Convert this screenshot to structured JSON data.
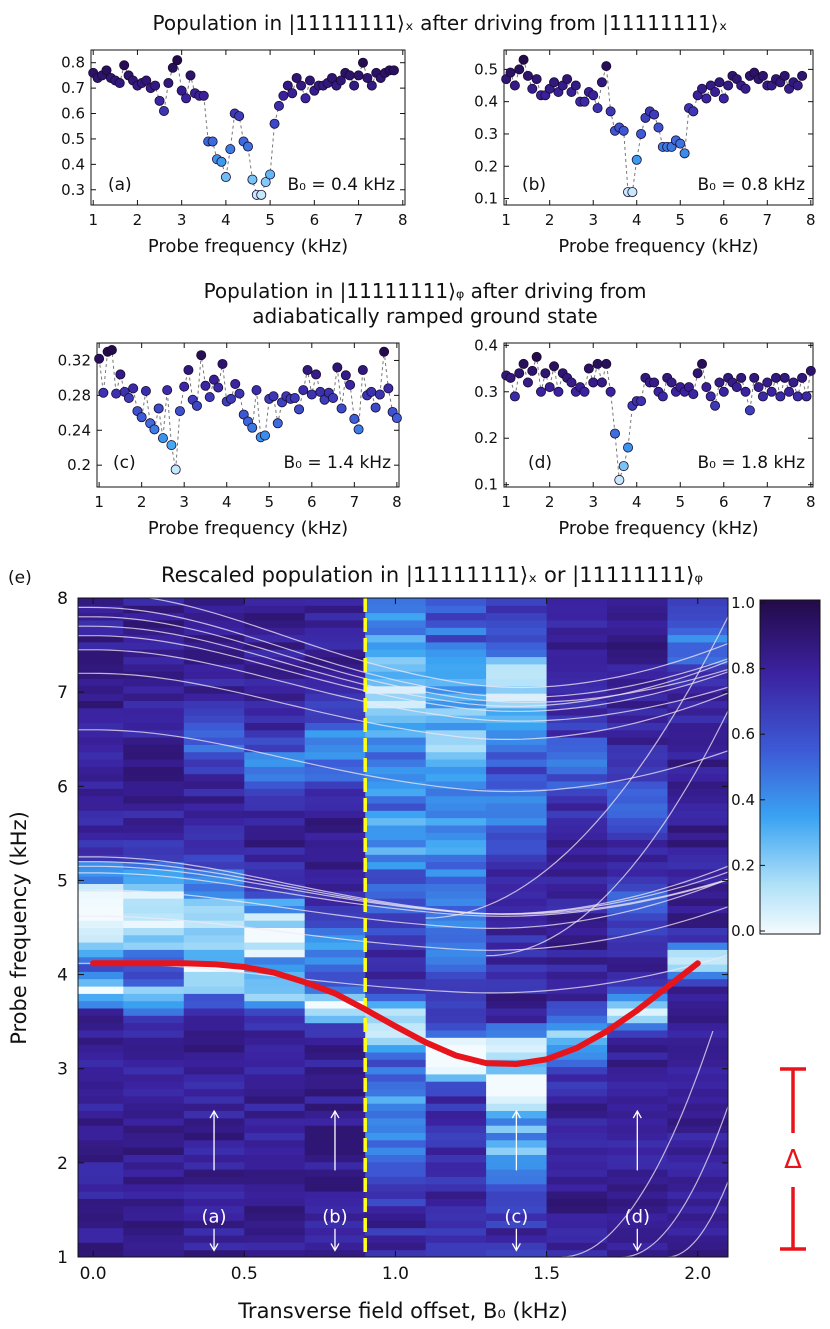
{
  "titles": {
    "top": "Population in |11111111⟩ₓ after driving from |11111111⟩ₓ",
    "mid_line1": "Population in |11111111⟩ᵩ after driving from",
    "mid_line2": "adiabatically ramped ground state",
    "bottom": "Rescaled population in |11111111⟩ₓ or |11111111⟩ᵩ",
    "bottom_panel_tag": "(e)"
  },
  "colors": {
    "point_dark": "#2a0a4a",
    "point_mid": "#3f2fa8",
    "point_blue": "#3f8fe8",
    "point_light": "#bfe6fb",
    "curve_red": "#e8141c",
    "line_yellow": "#ffff1a",
    "guide_white": "#f2e8f4"
  },
  "chart_data": [
    {
      "type": "scatter",
      "panel": "(a)",
      "annotation": "B₀ = 0.4 kHz",
      "xlabel": "Probe frequency (kHz)",
      "ylabel": "",
      "xlim": [
        0.95,
        8.05
      ],
      "ylim": [
        0.24,
        0.85
      ],
      "xticks": [
        "1",
        "2",
        "3",
        "4",
        "5",
        "6",
        "7",
        "8"
      ],
      "yticks": [
        "0.3",
        "0.4",
        "0.5",
        "0.6",
        "0.7",
        "0.8"
      ],
      "ytick_values": [
        0.3,
        0.4,
        0.5,
        0.6,
        0.7,
        0.8
      ],
      "x": [
        1.0,
        1.1,
        1.2,
        1.3,
        1.4,
        1.5,
        1.6,
        1.7,
        1.8,
        1.9,
        2.0,
        2.1,
        2.2,
        2.3,
        2.4,
        2.5,
        2.6,
        2.7,
        2.8,
        2.9,
        3.0,
        3.1,
        3.2,
        3.3,
        3.4,
        3.5,
        3.6,
        3.7,
        3.8,
        3.9,
        4.0,
        4.1,
        4.2,
        4.3,
        4.4,
        4.5,
        4.6,
        4.7,
        4.8,
        4.9,
        5.0,
        5.1,
        5.2,
        5.3,
        5.4,
        5.5,
        5.6,
        5.7,
        5.8,
        5.9,
        6.0,
        6.1,
        6.2,
        6.3,
        6.4,
        6.5,
        6.6,
        6.7,
        6.8,
        6.9,
        7.0,
        7.1,
        7.2,
        7.3,
        7.4,
        7.5,
        7.6,
        7.7,
        7.8
      ],
      "y": [
        0.76,
        0.74,
        0.75,
        0.77,
        0.74,
        0.73,
        0.72,
        0.79,
        0.75,
        0.73,
        0.71,
        0.72,
        0.73,
        0.7,
        0.71,
        0.65,
        0.61,
        0.72,
        0.78,
        0.81,
        0.69,
        0.66,
        0.75,
        0.68,
        0.67,
        0.67,
        0.49,
        0.49,
        0.42,
        0.41,
        0.35,
        0.46,
        0.6,
        0.59,
        0.49,
        0.47,
        0.34,
        0.28,
        0.28,
        0.33,
        0.36,
        0.56,
        0.63,
        0.67,
        0.71,
        0.68,
        0.74,
        0.71,
        0.66,
        0.73,
        0.69,
        0.71,
        0.71,
        0.72,
        0.74,
        0.71,
        0.73,
        0.76,
        0.75,
        0.71,
        0.75,
        0.8,
        0.74,
        0.71,
        0.76,
        0.74,
        0.76,
        0.77,
        0.77
      ]
    },
    {
      "type": "scatter",
      "panel": "(b)",
      "annotation": "B₀ = 0.8 kHz",
      "xlabel": "Probe frequency (kHz)",
      "ylabel": "",
      "xlim": [
        0.95,
        8.05
      ],
      "ylim": [
        0.08,
        0.56
      ],
      "xticks": [
        "1",
        "2",
        "3",
        "4",
        "5",
        "6",
        "7",
        "8"
      ],
      "yticks": [
        "0.1",
        "0.2",
        "0.3",
        "0.4",
        "0.5"
      ],
      "ytick_values": [
        0.1,
        0.2,
        0.3,
        0.4,
        0.5
      ],
      "x": [
        1.0,
        1.1,
        1.2,
        1.3,
        1.4,
        1.5,
        1.6,
        1.7,
        1.8,
        1.9,
        2.0,
        2.1,
        2.2,
        2.3,
        2.4,
        2.5,
        2.6,
        2.7,
        2.8,
        2.9,
        3.0,
        3.1,
        3.2,
        3.3,
        3.4,
        3.5,
        3.6,
        3.7,
        3.8,
        3.9,
        4.0,
        4.1,
        4.2,
        4.3,
        4.4,
        4.5,
        4.6,
        4.7,
        4.8,
        4.9,
        5.0,
        5.1,
        5.2,
        5.3,
        5.4,
        5.5,
        5.6,
        5.7,
        5.8,
        5.9,
        6.0,
        6.1,
        6.2,
        6.3,
        6.4,
        6.5,
        6.6,
        6.7,
        6.8,
        6.9,
        7.0,
        7.1,
        7.2,
        7.3,
        7.4,
        7.5,
        7.6,
        7.7,
        7.8
      ],
      "y": [
        0.47,
        0.49,
        0.45,
        0.5,
        0.53,
        0.48,
        0.44,
        0.47,
        0.42,
        0.42,
        0.44,
        0.46,
        0.43,
        0.45,
        0.47,
        0.43,
        0.45,
        0.4,
        0.4,
        0.43,
        0.42,
        0.38,
        0.46,
        0.51,
        0.37,
        0.31,
        0.32,
        0.31,
        0.12,
        0.12,
        0.22,
        0.3,
        0.35,
        0.37,
        0.36,
        0.32,
        0.26,
        0.26,
        0.26,
        0.28,
        0.27,
        0.24,
        0.38,
        0.37,
        0.42,
        0.44,
        0.41,
        0.45,
        0.43,
        0.46,
        0.41,
        0.45,
        0.48,
        0.47,
        0.45,
        0.44,
        0.48,
        0.49,
        0.47,
        0.48,
        0.45,
        0.45,
        0.47,
        0.46,
        0.48,
        0.44,
        0.46,
        0.45,
        0.48
      ]
    },
    {
      "type": "scatter",
      "panel": "(c)",
      "annotation": "B₀ = 1.4 kHz",
      "xlabel": "Probe frequency (kHz)",
      "ylabel": "",
      "xlim": [
        0.95,
        8.05
      ],
      "ylim": [
        0.175,
        0.34
      ],
      "xticks": [
        "1",
        "2",
        "3",
        "4",
        "5",
        "6",
        "7",
        "8"
      ],
      "yticks": [
        "0.2",
        "0.24",
        "0.28",
        "0.32"
      ],
      "ytick_values": [
        0.2,
        0.24,
        0.28,
        0.32
      ],
      "x": [
        1.0,
        1.1,
        1.2,
        1.3,
        1.4,
        1.5,
        1.6,
        1.7,
        1.8,
        1.9,
        2.0,
        2.1,
        2.2,
        2.3,
        2.4,
        2.5,
        2.6,
        2.7,
        2.8,
        2.9,
        3.0,
        3.1,
        3.2,
        3.3,
        3.4,
        3.5,
        3.6,
        3.7,
        3.8,
        3.9,
        4.0,
        4.1,
        4.2,
        4.3,
        4.4,
        4.5,
        4.6,
        4.7,
        4.8,
        4.9,
        5.0,
        5.1,
        5.2,
        5.3,
        5.4,
        5.5,
        5.6,
        5.7,
        5.8,
        5.9,
        6.0,
        6.1,
        6.2,
        6.3,
        6.4,
        6.5,
        6.6,
        6.7,
        6.8,
        6.9,
        7.0,
        7.1,
        7.2,
        7.3,
        7.4,
        7.5,
        7.6,
        7.7,
        7.8,
        7.9,
        8.0
      ],
      "y": [
        0.322,
        0.283,
        0.33,
        0.332,
        0.282,
        0.304,
        0.284,
        0.277,
        0.288,
        0.262,
        0.255,
        0.285,
        0.248,
        0.241,
        0.265,
        0.231,
        0.286,
        0.223,
        0.195,
        0.262,
        0.29,
        0.309,
        0.275,
        0.268,
        0.326,
        0.291,
        0.278,
        0.298,
        0.289,
        0.316,
        0.273,
        0.276,
        0.293,
        0.282,
        0.258,
        0.25,
        0.243,
        0.286,
        0.232,
        0.234,
        0.276,
        0.279,
        0.248,
        0.272,
        0.279,
        0.276,
        0.277,
        0.264,
        0.286,
        0.309,
        0.281,
        0.304,
        0.284,
        0.275,
        0.283,
        0.277,
        0.312,
        0.265,
        0.303,
        0.292,
        0.253,
        0.241,
        0.309,
        0.28,
        0.284,
        0.266,
        0.281,
        0.33,
        0.288,
        0.261,
        0.254
      ]
    },
    {
      "type": "scatter",
      "panel": "(d)",
      "annotation": "B₀ = 1.8 kHz",
      "xlabel": "Probe frequency (kHz)",
      "ylabel": "",
      "xlim": [
        0.95,
        8.05
      ],
      "ylim": [
        0.095,
        0.405
      ],
      "xticks": [
        "1",
        "2",
        "3",
        "4",
        "5",
        "6",
        "7",
        "8"
      ],
      "yticks": [
        "0.1",
        "0.2",
        "0.3",
        "0.4"
      ],
      "ytick_values": [
        0.1,
        0.2,
        0.3,
        0.4
      ],
      "x": [
        1.0,
        1.1,
        1.2,
        1.3,
        1.4,
        1.5,
        1.6,
        1.7,
        1.8,
        1.9,
        2.0,
        2.1,
        2.2,
        2.3,
        2.4,
        2.5,
        2.6,
        2.7,
        2.8,
        2.9,
        3.0,
        3.1,
        3.2,
        3.3,
        3.4,
        3.5,
        3.6,
        3.7,
        3.8,
        3.9,
        4.0,
        4.1,
        4.2,
        4.3,
        4.4,
        4.5,
        4.6,
        4.7,
        4.8,
        4.9,
        5.0,
        5.1,
        5.2,
        5.3,
        5.4,
        5.5,
        5.6,
        5.7,
        5.8,
        5.9,
        6.0,
        6.1,
        6.2,
        6.3,
        6.4,
        6.5,
        6.6,
        6.7,
        6.8,
        6.9,
        7.0,
        7.1,
        7.2,
        7.3,
        7.4,
        7.5,
        7.6,
        7.7,
        7.8,
        7.9,
        8.0
      ],
      "y": [
        0.335,
        0.33,
        0.29,
        0.34,
        0.36,
        0.32,
        0.345,
        0.375,
        0.3,
        0.34,
        0.31,
        0.355,
        0.3,
        0.34,
        0.33,
        0.32,
        0.3,
        0.31,
        0.3,
        0.35,
        0.32,
        0.36,
        0.32,
        0.36,
        0.3,
        0.21,
        0.11,
        0.14,
        0.18,
        0.27,
        0.28,
        0.28,
        0.33,
        0.32,
        0.32,
        0.3,
        0.29,
        0.33,
        0.32,
        0.3,
        0.31,
        0.3,
        0.31,
        0.295,
        0.34,
        0.36,
        0.31,
        0.29,
        0.27,
        0.32,
        0.3,
        0.33,
        0.32,
        0.31,
        0.33,
        0.3,
        0.26,
        0.33,
        0.31,
        0.29,
        0.32,
        0.3,
        0.33,
        0.29,
        0.33,
        0.3,
        0.32,
        0.29,
        0.33,
        0.29,
        0.345
      ]
    },
    {
      "type": "heatmap",
      "panel": "(e)",
      "xlabel": "Transverse field offset, B₀ (kHz)",
      "ylabel": "Probe frequency (kHz)",
      "xlim": [
        -0.05,
        2.1
      ],
      "ylim": [
        1.0,
        8.0
      ],
      "xticks": [
        "0.0",
        "0.5",
        "1.0",
        "1.5",
        "2.0"
      ],
      "xtick_values": [
        0.0,
        0.5,
        1.0,
        1.5,
        2.0
      ],
      "yticks": [
        "1",
        "2",
        "3",
        "4",
        "5",
        "6",
        "7",
        "8"
      ],
      "ytick_values": [
        1,
        2,
        3,
        4,
        5,
        6,
        7,
        8
      ],
      "columns_B0": [
        0.0,
        0.2,
        0.4,
        0.6,
        0.8,
        1.0,
        1.2,
        1.4,
        1.6,
        1.8,
        2.0
      ],
      "column_features": [
        {
          "dips": [
            [
              4.65,
              0.35,
              0.9
            ],
            [
              3.82,
              0.1,
              0.8
            ]
          ]
        },
        {
          "dips": [
            [
              4.62,
              0.35,
              0.8
            ],
            [
              3.75,
              0.12,
              0.6
            ]
          ]
        },
        {
          "dips": [
            [
              4.55,
              0.4,
              0.6
            ],
            [
              3.95,
              0.15,
              0.55
            ],
            [
              6.5,
              0.2,
              0.3
            ]
          ]
        },
        {
          "dips": [
            [
              4.45,
              0.3,
              0.75
            ],
            [
              3.8,
              0.15,
              0.5
            ],
            [
              6.2,
              0.2,
              0.35
            ]
          ]
        },
        {
          "dips": [
            [
              3.65,
              0.12,
              0.9
            ],
            [
              4.3,
              0.2,
              0.45
            ],
            [
              6.4,
              0.3,
              0.35
            ]
          ]
        },
        {
          "dips": [
            [
              3.5,
              0.2,
              0.55
            ],
            [
              7.1,
              0.6,
              0.55
            ],
            [
              5.5,
              0.5,
              0.35
            ],
            [
              2.5,
              0.5,
              0.35
            ]
          ]
        },
        {
          "dips": [
            [
              3.15,
              0.2,
              0.8
            ],
            [
              6.9,
              0.6,
              0.5
            ],
            [
              5.4,
              0.5,
              0.35
            ],
            [
              4.3,
              0.3,
              0.3
            ]
          ]
        },
        {
          "dips": [
            [
              2.85,
              0.15,
              0.85
            ],
            [
              3.25,
              0.12,
              0.6
            ],
            [
              7.0,
              0.4,
              0.55
            ],
            [
              2.2,
              0.4,
              0.4
            ],
            [
              5.8,
              0.3,
              0.3
            ]
          ]
        },
        {
          "dips": [
            [
              3.3,
              0.25,
              0.5
            ],
            [
              6.2,
              0.3,
              0.3
            ]
          ]
        },
        {
          "dips": [
            [
              3.6,
              0.15,
              0.65
            ],
            [
              5.8,
              0.3,
              0.3
            ],
            [
              4.7,
              0.2,
              0.3
            ]
          ]
        },
        {
          "dips": [
            [
              4.15,
              0.12,
              0.8
            ],
            [
              7.5,
              0.3,
              0.3
            ]
          ]
        }
      ],
      "colorbar": {
        "ticks": [
          "1.0",
          "0.8",
          "0.6",
          "0.4",
          "0.2",
          "0.0"
        ],
        "tick_values": [
          1.0,
          0.8,
          0.6,
          0.4,
          0.2,
          0.0
        ],
        "range": [
          0.0,
          1.0
        ]
      },
      "vertical_line_B0": 0.9,
      "red_curve_x": [
        0.0,
        0.1,
        0.2,
        0.3,
        0.4,
        0.5,
        0.6,
        0.7,
        0.8,
        0.9,
        1.0,
        1.1,
        1.2,
        1.3,
        1.4,
        1.5,
        1.6,
        1.7,
        1.8,
        1.9,
        2.0
      ],
      "red_curve_y": [
        4.12,
        4.12,
        4.12,
        4.12,
        4.11,
        4.08,
        4.02,
        3.92,
        3.8,
        3.63,
        3.45,
        3.28,
        3.14,
        3.06,
        3.05,
        3.1,
        3.22,
        3.4,
        3.62,
        3.87,
        4.12
      ],
      "guide_base_freqs": [
        4.12,
        4.62,
        4.9,
        5.08,
        5.15,
        5.2,
        5.25,
        6.6,
        7.2,
        7.45,
        7.6,
        7.7,
        7.8,
        7.9,
        8.05
      ],
      "markers": [
        {
          "label": "(a)",
          "B0": 0.4
        },
        {
          "label": "(b)",
          "B0": 0.8
        },
        {
          "label": "(c)",
          "B0": 1.4
        },
        {
          "label": "(d)",
          "B0": 1.8
        }
      ],
      "delta_label": "Δ"
    }
  ]
}
